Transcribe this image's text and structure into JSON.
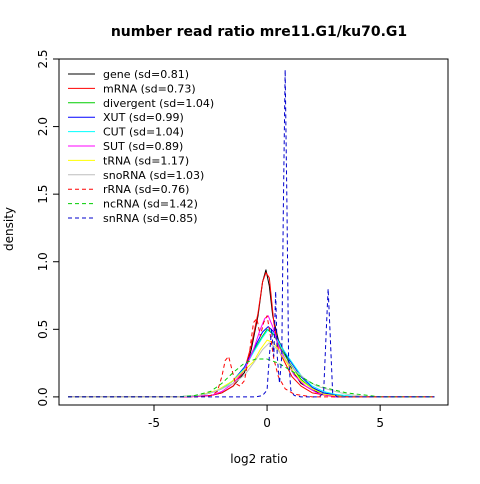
{
  "chart_data": {
    "type": "line",
    "title": "number read ratio mre11.G1/ku70.G1",
    "xlabel": "log2 ratio",
    "ylabel": "density",
    "xlim": [
      -9.2,
      8.0
    ],
    "ylim": [
      -0.06,
      2.5
    ],
    "x_ticks": [
      -5,
      0,
      5
    ],
    "y_ticks": [
      0.0,
      0.5,
      1.0,
      1.5,
      2.0,
      2.5
    ],
    "x_tick_labels": [
      "-5",
      "0",
      "5"
    ],
    "y_tick_labels": [
      "0.0",
      "0.5",
      "1.0",
      "1.5",
      "2.0",
      "2.5"
    ],
    "grid": false,
    "legend_position": "top-left",
    "series": [
      {
        "name": "gene (sd=0.81)",
        "color": "#000000",
        "dash": "solid",
        "points": [
          [
            -8.8,
            0
          ],
          [
            -3.5,
            0
          ],
          [
            -2.5,
            0.01
          ],
          [
            -2.0,
            0.03
          ],
          [
            -1.5,
            0.08
          ],
          [
            -1.0,
            0.18
          ],
          [
            -0.7,
            0.35
          ],
          [
            -0.4,
            0.6
          ],
          [
            -0.2,
            0.85
          ],
          [
            -0.05,
            0.94
          ],
          [
            0.1,
            0.82
          ],
          [
            0.25,
            0.6
          ],
          [
            0.5,
            0.42
          ],
          [
            0.8,
            0.32
          ],
          [
            1.1,
            0.2
          ],
          [
            1.5,
            0.1
          ],
          [
            2.0,
            0.05
          ],
          [
            2.5,
            0.02
          ],
          [
            3.5,
            0
          ],
          [
            7.4,
            0
          ]
        ]
      },
      {
        "name": "mRNA (sd=0.73)",
        "color": "#ff0000",
        "dash": "solid",
        "points": [
          [
            -8.8,
            0
          ],
          [
            -3.5,
            0
          ],
          [
            -2.5,
            0.01
          ],
          [
            -2.0,
            0.03
          ],
          [
            -1.5,
            0.08
          ],
          [
            -1.0,
            0.2
          ],
          [
            -0.7,
            0.38
          ],
          [
            -0.4,
            0.62
          ],
          [
            -0.2,
            0.85
          ],
          [
            -0.05,
            0.92
          ],
          [
            0.1,
            0.88
          ],
          [
            0.3,
            0.55
          ],
          [
            0.5,
            0.35
          ],
          [
            0.8,
            0.25
          ],
          [
            1.1,
            0.15
          ],
          [
            1.5,
            0.08
          ],
          [
            2.0,
            0.03
          ],
          [
            3.0,
            0
          ],
          [
            7.4,
            0
          ]
        ]
      },
      {
        "name": "divergent (sd=1.04)",
        "color": "#00cd00",
        "dash": "solid",
        "points": [
          [
            -8.8,
            0
          ],
          [
            -4.0,
            0
          ],
          [
            -3.0,
            0.01
          ],
          [
            -2.5,
            0.03
          ],
          [
            -2.0,
            0.06
          ],
          [
            -1.5,
            0.12
          ],
          [
            -1.0,
            0.22
          ],
          [
            -0.6,
            0.34
          ],
          [
            -0.2,
            0.45
          ],
          [
            0.0,
            0.5
          ],
          [
            0.3,
            0.46
          ],
          [
            0.6,
            0.36
          ],
          [
            1.0,
            0.25
          ],
          [
            1.5,
            0.13
          ],
          [
            2.0,
            0.06
          ],
          [
            2.5,
            0.03
          ],
          [
            3.5,
            0
          ],
          [
            7.4,
            0
          ]
        ]
      },
      {
        "name": "XUT (sd=0.99)",
        "color": "#0000ff",
        "dash": "solid",
        "points": [
          [
            -8.8,
            0
          ],
          [
            -4.0,
            0
          ],
          [
            -3.0,
            0.01
          ],
          [
            -2.5,
            0.03
          ],
          [
            -2.0,
            0.06
          ],
          [
            -1.5,
            0.12
          ],
          [
            -1.0,
            0.22
          ],
          [
            -0.6,
            0.35
          ],
          [
            -0.2,
            0.48
          ],
          [
            0.05,
            0.52
          ],
          [
            0.3,
            0.48
          ],
          [
            0.6,
            0.38
          ],
          [
            1.0,
            0.27
          ],
          [
            1.5,
            0.15
          ],
          [
            2.0,
            0.07
          ],
          [
            2.5,
            0.03
          ],
          [
            3.5,
            0
          ],
          [
            7.4,
            0
          ]
        ]
      },
      {
        "name": "CUT (sd=1.04)",
        "color": "#00ffff",
        "dash": "solid",
        "points": [
          [
            -8.8,
            0
          ],
          [
            -4.0,
            0
          ],
          [
            -3.0,
            0.01
          ],
          [
            -2.5,
            0.03
          ],
          [
            -2.0,
            0.06
          ],
          [
            -1.5,
            0.12
          ],
          [
            -1.0,
            0.21
          ],
          [
            -0.6,
            0.33
          ],
          [
            -0.2,
            0.44
          ],
          [
            0.05,
            0.5
          ],
          [
            0.3,
            0.47
          ],
          [
            0.6,
            0.38
          ],
          [
            1.0,
            0.28
          ],
          [
            1.5,
            0.16
          ],
          [
            2.0,
            0.08
          ],
          [
            2.5,
            0.04
          ],
          [
            3.0,
            0.02
          ],
          [
            4.0,
            0
          ],
          [
            7.4,
            0
          ]
        ]
      },
      {
        "name": "SUT (sd=0.89)",
        "color": "#ff00ff",
        "dash": "solid",
        "points": [
          [
            -8.8,
            0
          ],
          [
            -3.5,
            0
          ],
          [
            -2.5,
            0.01
          ],
          [
            -2.0,
            0.04
          ],
          [
            -1.5,
            0.1
          ],
          [
            -1.0,
            0.2
          ],
          [
            -0.6,
            0.35
          ],
          [
            -0.3,
            0.5
          ],
          [
            -0.1,
            0.58
          ],
          [
            0.05,
            0.6
          ],
          [
            0.25,
            0.52
          ],
          [
            0.5,
            0.38
          ],
          [
            0.8,
            0.28
          ],
          [
            1.2,
            0.16
          ],
          [
            1.7,
            0.08
          ],
          [
            2.2,
            0.03
          ],
          [
            3.0,
            0
          ],
          [
            7.4,
            0
          ]
        ]
      },
      {
        "name": "tRNA (sd=1.17)",
        "color": "#ffff00",
        "dash": "solid",
        "points": [
          [
            -8.8,
            0
          ],
          [
            -4.0,
            0
          ],
          [
            -3.0,
            0.01
          ],
          [
            -2.2,
            0.05
          ],
          [
            -1.5,
            0.12
          ],
          [
            -1.0,
            0.2
          ],
          [
            -0.6,
            0.26
          ],
          [
            -0.3,
            0.35
          ],
          [
            0.0,
            0.42
          ],
          [
            0.3,
            0.4
          ],
          [
            0.6,
            0.32
          ],
          [
            1.0,
            0.22
          ],
          [
            1.5,
            0.12
          ],
          [
            2.0,
            0.06
          ],
          [
            2.5,
            0.02
          ],
          [
            3.5,
            0
          ],
          [
            7.4,
            0
          ]
        ]
      },
      {
        "name": "snoRNA (sd=1.03)",
        "color": "#bebebe",
        "dash": "solid",
        "points": [
          [
            -8.8,
            0
          ],
          [
            -4.0,
            0
          ],
          [
            -3.0,
            0.01
          ],
          [
            -2.5,
            0.03
          ],
          [
            -2.0,
            0.06
          ],
          [
            -1.5,
            0.1
          ],
          [
            -1.0,
            0.16
          ],
          [
            -0.6,
            0.25
          ],
          [
            -0.2,
            0.35
          ],
          [
            0.1,
            0.4
          ],
          [
            0.4,
            0.36
          ],
          [
            0.8,
            0.28
          ],
          [
            1.2,
            0.2
          ],
          [
            1.7,
            0.13
          ],
          [
            2.2,
            0.08
          ],
          [
            2.8,
            0.05
          ],
          [
            3.5,
            0.02
          ],
          [
            4.5,
            0
          ],
          [
            7.4,
            0
          ]
        ]
      },
      {
        "name": "rRNA (sd=0.76)",
        "color": "#ff0000",
        "dash": "dashed",
        "points": [
          [
            -8.8,
            0
          ],
          [
            -3.0,
            0
          ],
          [
            -2.5,
            0.01
          ],
          [
            -2.2,
            0.04
          ],
          [
            -2.0,
            0.15
          ],
          [
            -1.85,
            0.27
          ],
          [
            -1.7,
            0.3
          ],
          [
            -1.55,
            0.2
          ],
          [
            -1.4,
            0.1
          ],
          [
            -1.2,
            0.08
          ],
          [
            -1.0,
            0.12
          ],
          [
            -0.8,
            0.3
          ],
          [
            -0.6,
            0.55
          ],
          [
            -0.45,
            0.58
          ],
          [
            -0.3,
            0.45
          ],
          [
            -0.15,
            0.55
          ],
          [
            0.0,
            0.6
          ],
          [
            0.15,
            0.45
          ],
          [
            0.3,
            0.28
          ],
          [
            0.5,
            0.15
          ],
          [
            0.8,
            0.06
          ],
          [
            1.2,
            0.02
          ],
          [
            2.0,
            0
          ],
          [
            7.4,
            0
          ]
        ]
      },
      {
        "name": "ncRNA (sd=1.42)",
        "color": "#00cd00",
        "dash": "dashed",
        "points": [
          [
            -8.8,
            0
          ],
          [
            -4.0,
            0
          ],
          [
            -3.2,
            0.01
          ],
          [
            -2.5,
            0.04
          ],
          [
            -2.0,
            0.1
          ],
          [
            -1.5,
            0.18
          ],
          [
            -1.0,
            0.25
          ],
          [
            -0.5,
            0.28
          ],
          [
            0.0,
            0.28
          ],
          [
            0.5,
            0.25
          ],
          [
            1.0,
            0.2
          ],
          [
            1.5,
            0.15
          ],
          [
            2.0,
            0.1
          ],
          [
            2.5,
            0.07
          ],
          [
            3.0,
            0.05
          ],
          [
            3.5,
            0.03
          ],
          [
            4.0,
            0.02
          ],
          [
            4.5,
            0.01
          ],
          [
            5.0,
            0
          ],
          [
            7.4,
            0
          ]
        ]
      },
      {
        "name": "snRNA (sd=0.85)",
        "color": "#0000cd",
        "dash": "dashed",
        "points": [
          [
            -8.8,
            0
          ],
          [
            -0.5,
            0
          ],
          [
            -0.2,
            0.01
          ],
          [
            0.0,
            0.05
          ],
          [
            0.1,
            0.3
          ],
          [
            0.2,
            0.5
          ],
          [
            0.3,
            0.3
          ],
          [
            0.38,
            0.78
          ],
          [
            0.45,
            0.3
          ],
          [
            0.55,
            0.1
          ],
          [
            0.65,
            0.3
          ],
          [
            0.72,
            1.4
          ],
          [
            0.8,
            2.42
          ],
          [
            0.88,
            1.4
          ],
          [
            0.95,
            0.3
          ],
          [
            1.05,
            0.05
          ],
          [
            1.2,
            0.01
          ],
          [
            1.5,
            0
          ],
          [
            2.3,
            0
          ],
          [
            2.5,
            0.03
          ],
          [
            2.62,
            0.5
          ],
          [
            2.7,
            0.8
          ],
          [
            2.78,
            0.5
          ],
          [
            2.9,
            0.03
          ],
          [
            3.1,
            0
          ],
          [
            7.4,
            0
          ]
        ]
      }
    ]
  }
}
